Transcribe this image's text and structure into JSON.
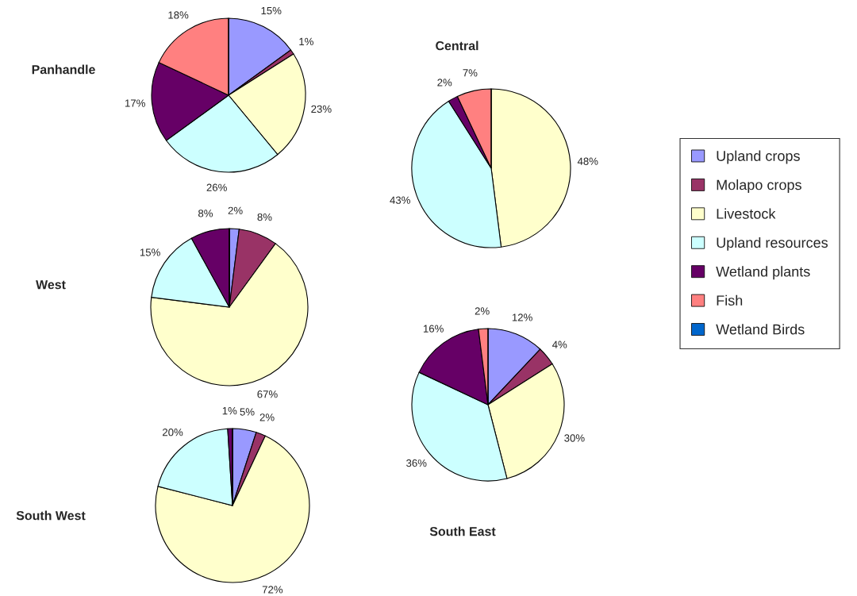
{
  "chart_data": [
    {
      "type": "pie",
      "title": "Panhandle",
      "categories": [
        "Upland crops",
        "Molapo crops",
        "Livestock",
        "Upland resources",
        "Wetland plants",
        "Fish",
        "Wetland Birds"
      ],
      "values": [
        15,
        1,
        23,
        26,
        17,
        18,
        0
      ],
      "value_labels": [
        "15%",
        "1%",
        "23%",
        "26%",
        "17%",
        "18%",
        null
      ],
      "colors": [
        "#9999ff",
        "#993366",
        "#ffffcc",
        "#ccffff",
        "#660066",
        "#ff8080",
        "#0066cc"
      ],
      "legend": "right"
    },
    {
      "type": "pie",
      "title": "Central",
      "categories": [
        null,
        null,
        null,
        null,
        null,
        null,
        null
      ],
      "values": [
        0,
        0,
        48,
        43,
        2,
        7,
        0
      ],
      "value_labels": [
        null,
        null,
        "48%",
        "43%",
        "2%",
        "7%",
        null
      ],
      "colors": [
        "#9999ff",
        "#993366",
        "#ffffcc",
        "#ccffff",
        "#660066",
        "#ff8080",
        "#0066cc"
      ]
    },
    {
      "type": "pie",
      "title": "West",
      "categories": [
        null,
        null,
        null,
        null,
        null,
        null,
        null
      ],
      "values": [
        2,
        8,
        67,
        15,
        8,
        0,
        0
      ],
      "value_labels": [
        "2%",
        "8%",
        "67%",
        "15%",
        "8%",
        null,
        null
      ],
      "colors": [
        "#9999ff",
        "#993366",
        "#ffffcc",
        "#ccffff",
        "#660066",
        "#ff8080",
        "#0066cc"
      ]
    },
    {
      "type": "pie",
      "title": "South East",
      "categories": [
        null,
        null,
        null,
        null,
        null,
        null,
        null
      ],
      "values": [
        12,
        4,
        30,
        36,
        16,
        2,
        0
      ],
      "value_labels": [
        "12%",
        "4%",
        "30%",
        "36%",
        "16%",
        "2%",
        null
      ],
      "colors": [
        "#9999ff",
        "#993366",
        "#ffffcc",
        "#ccffff",
        "#660066",
        "#ff8080",
        "#0066cc"
      ]
    },
    {
      "type": "pie",
      "title": "South West",
      "categories": [
        null,
        null,
        null,
        null,
        null,
        null,
        null
      ],
      "values": [
        5,
        2,
        72,
        20,
        1,
        0,
        0
      ],
      "value_labels": [
        "5%",
        "2%",
        "72%",
        "20%",
        "1%",
        null,
        null
      ],
      "colors": [
        "#9999ff",
        "#993366",
        "#ffffcc",
        "#ccffff",
        "#660066",
        "#ff8080",
        "#0066cc"
      ]
    }
  ]
}
